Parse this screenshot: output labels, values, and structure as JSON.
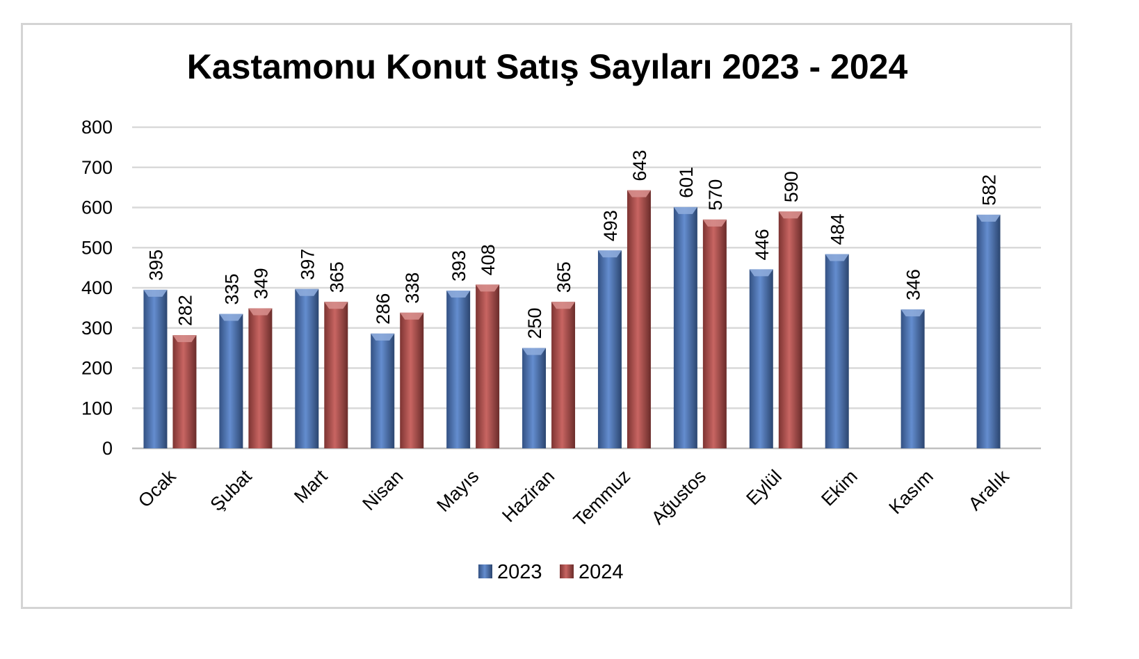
{
  "chart_data": {
    "type": "bar",
    "title": "Kastamonu Konut Satış Sayıları 2023 - 2024",
    "categories": [
      "Ocak",
      "Şubat",
      "Mart",
      "Nisan",
      "Mayıs",
      "Haziran",
      "Temmuz",
      "Ağustos",
      "Eylül",
      "Ekim",
      "Kasım",
      "Aralık"
    ],
    "series": [
      {
        "name": "2023",
        "color": "#4f7dc9",
        "values": [
          395,
          335,
          397,
          286,
          393,
          250,
          493,
          601,
          446,
          484,
          346,
          582
        ]
      },
      {
        "name": "2024",
        "color": "#c0504d",
        "values": [
          282,
          349,
          365,
          338,
          408,
          365,
          643,
          570,
          590,
          null,
          null,
          null
        ]
      }
    ],
    "ylim": [
      0,
      800
    ],
    "yticks": [
      0,
      100,
      200,
      300,
      400,
      500,
      600,
      700,
      800
    ],
    "grid": true,
    "legend": "bottom",
    "data_labels": true
  }
}
